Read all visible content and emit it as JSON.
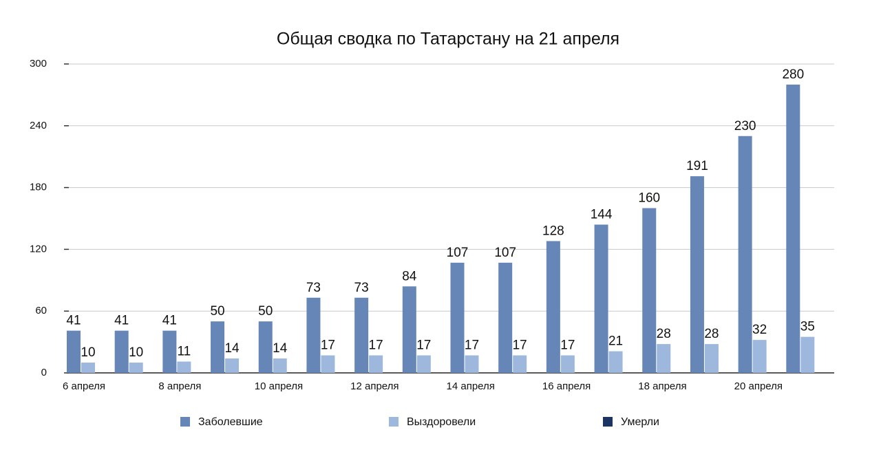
{
  "chart_data": {
    "type": "bar",
    "title": "Общая сводка по Татарстану на 21 апреля",
    "categories": [
      "6 апреля",
      null,
      "8 апреля",
      null,
      "10 апреля",
      null,
      "12 апреля",
      null,
      "14 апреля",
      null,
      "16 апреля",
      null,
      "18 апреля",
      null,
      "20 апреля",
      null
    ],
    "series": [
      {
        "name": "Заболевшие",
        "color": "#6686b8",
        "values": [
          41,
          41,
          41,
          50,
          50,
          73,
          73,
          84,
          107,
          107,
          128,
          144,
          160,
          191,
          230,
          280
        ]
      },
      {
        "name": "Выздоровели",
        "color": "#9db8dc",
        "values": [
          10,
          10,
          11,
          14,
          14,
          17,
          17,
          17,
          17,
          17,
          17,
          21,
          28,
          28,
          32,
          35
        ]
      },
      {
        "name": "Умерли",
        "color": "#1c3461",
        "values": [
          null,
          null,
          null,
          null,
          null,
          null,
          null,
          null,
          null,
          null,
          null,
          null,
          null,
          null,
          null,
          null
        ]
      }
    ],
    "ylim": [
      0,
      300
    ],
    "yticks": [
      0,
      60,
      120,
      180,
      240,
      300
    ],
    "grid": true,
    "legend": "bottom"
  }
}
